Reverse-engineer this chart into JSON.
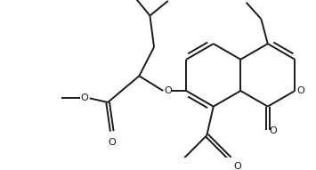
{
  "bg_color": "#ffffff",
  "line_color": "#1a1a1a",
  "line_width": 1.4,
  "figsize": [
    3.55,
    1.91
  ],
  "dpi": 100,
  "xlim": [
    0,
    355
  ],
  "ylim": [
    0,
    191
  ]
}
